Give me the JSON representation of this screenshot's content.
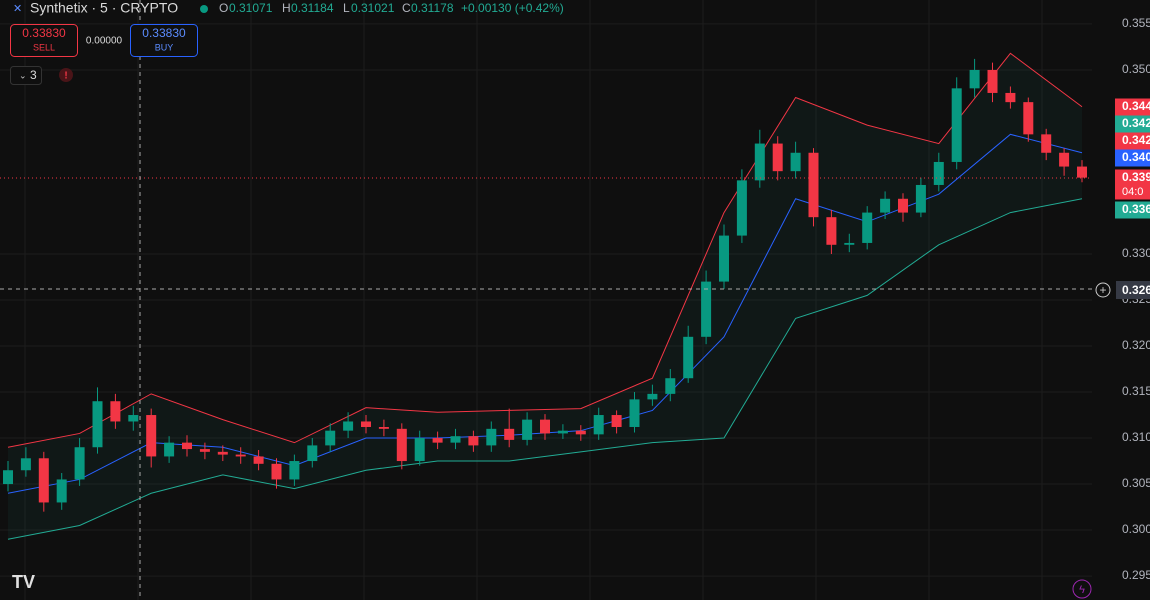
{
  "header": {
    "symbol": "Synthetix · 5 · CRYPTO",
    "o_label": "O",
    "o": "0.31071",
    "h_label": "H",
    "h": "0.31184",
    "l_label": "L",
    "l": "0.31021",
    "c_label": "C",
    "c": "0.31178",
    "change": "+0.00130 (+0.42%)"
  },
  "trade": {
    "sell_price": "0.33830",
    "sell": "SELL",
    "spread": "0.00000",
    "buy_price": "0.33830",
    "buy": "BUY",
    "indicators": "3"
  },
  "price_tags": [
    {
      "label": "0.344",
      "color": "#f23645"
    },
    {
      "label": "0.342",
      "color": "#22ab94"
    },
    {
      "label": "0.342",
      "color": "#f23645"
    },
    {
      "label": "0.340",
      "color": "#2962ff"
    },
    {
      "label": "0.339",
      "color": "#f23645",
      "sub": "04:0"
    },
    {
      "label": "0.336",
      "color": "#22ab94"
    }
  ],
  "crosshair_label": "0.326",
  "chart_data": {
    "type": "candlestick",
    "ylim": [
      0.2924,
      0.3576
    ],
    "yticks": [
      {
        "value": 0.295,
        "label": "0.295"
      },
      {
        "value": 0.3,
        "label": "0.300"
      },
      {
        "value": 0.305,
        "label": "0.305"
      },
      {
        "value": 0.31,
        "label": "0.310"
      },
      {
        "value": 0.315,
        "label": "0.315"
      },
      {
        "value": 0.32,
        "label": "0.320"
      },
      {
        "value": 0.325,
        "label": "0.325"
      },
      {
        "value": 0.33,
        "label": "0.330"
      },
      {
        "value": 0.35,
        "label": "0.350"
      },
      {
        "value": 0.355,
        "label": "0.355"
      }
    ],
    "up_color": "#089981",
    "down_color": "#f23645",
    "open": [
      0.305,
      0.3065,
      0.3078,
      0.303,
      0.3055,
      0.309,
      0.314,
      0.3118,
      0.3125,
      0.308,
      0.3095,
      0.3088,
      0.3085,
      0.3082,
      0.308,
      0.3072,
      0.3055,
      0.3075,
      0.3092,
      0.3108,
      0.3118,
      0.3112,
      0.311,
      0.3075,
      0.31,
      0.3095,
      0.3102,
      0.3092,
      0.311,
      0.3098,
      0.312,
      0.3105,
      0.3108,
      0.3104,
      0.3125,
      0.3112,
      0.3142,
      0.3148,
      0.3165,
      0.321,
      0.327,
      0.332,
      0.338,
      0.342,
      0.339,
      0.341,
      0.334,
      0.331,
      0.3312,
      0.3345,
      0.336,
      0.3345,
      0.3375,
      0.34,
      0.348,
      0.35,
      0.3475,
      0.3465,
      0.343,
      0.341,
      0.3395
    ],
    "high": [
      0.3075,
      0.309,
      0.3085,
      0.3062,
      0.31,
      0.3155,
      0.3148,
      0.3135,
      0.3132,
      0.3102,
      0.3103,
      0.3095,
      0.3092,
      0.309,
      0.3087,
      0.3078,
      0.3082,
      0.31,
      0.3116,
      0.3128,
      0.3125,
      0.312,
      0.3116,
      0.3108,
      0.3107,
      0.311,
      0.3108,
      0.3118,
      0.3132,
      0.3128,
      0.3126,
      0.3115,
      0.3114,
      0.3133,
      0.313,
      0.315,
      0.3158,
      0.3175,
      0.3222,
      0.3282,
      0.3332,
      0.3392,
      0.3435,
      0.3428,
      0.3422,
      0.3415,
      0.3348,
      0.3322,
      0.3352,
      0.3368,
      0.3366,
      0.3383,
      0.341,
      0.3492,
      0.3512,
      0.3508,
      0.3482,
      0.347,
      0.3436,
      0.3415,
      0.3402
    ],
    "low": [
      0.3042,
      0.3058,
      0.302,
      0.3022,
      0.3048,
      0.3083,
      0.311,
      0.3108,
      0.3068,
      0.3073,
      0.308,
      0.3077,
      0.3075,
      0.3072,
      0.3065,
      0.3045,
      0.3048,
      0.3068,
      0.3085,
      0.31,
      0.3105,
      0.3102,
      0.3066,
      0.307,
      0.3088,
      0.3088,
      0.3085,
      0.3085,
      0.309,
      0.3092,
      0.3098,
      0.3099,
      0.3097,
      0.3098,
      0.3105,
      0.3106,
      0.3135,
      0.314,
      0.316,
      0.3202,
      0.3262,
      0.3312,
      0.3372,
      0.338,
      0.3382,
      0.333,
      0.33,
      0.3302,
      0.3305,
      0.3338,
      0.3335,
      0.334,
      0.3368,
      0.3392,
      0.347,
      0.3465,
      0.3458,
      0.3422,
      0.3402,
      0.3385,
      0.3378
    ],
    "close": [
      0.3065,
      0.3078,
      0.303,
      0.3055,
      0.309,
      0.314,
      0.3118,
      0.3125,
      0.308,
      0.3095,
      0.3088,
      0.3085,
      0.3082,
      0.308,
      0.3072,
      0.3055,
      0.3075,
      0.3092,
      0.3108,
      0.3118,
      0.3112,
      0.311,
      0.3075,
      0.31,
      0.3095,
      0.3102,
      0.3092,
      0.311,
      0.3098,
      0.312,
      0.3105,
      0.3108,
      0.3104,
      0.3125,
      0.3112,
      0.3142,
      0.3148,
      0.3165,
      0.321,
      0.327,
      0.332,
      0.338,
      0.342,
      0.339,
      0.341,
      0.334,
      0.331,
      0.3312,
      0.3345,
      0.336,
      0.3345,
      0.3375,
      0.34,
      0.348,
      0.35,
      0.3475,
      0.3465,
      0.343,
      0.341,
      0.3395,
      0.3383
    ],
    "bands": {
      "x": [
        0,
        4,
        8,
        12,
        16,
        20,
        24,
        28,
        32,
        36,
        40,
        44,
        48,
        52,
        56,
        60
      ],
      "upper": [
        0.309,
        0.3105,
        0.3148,
        0.312,
        0.3095,
        0.3133,
        0.3128,
        0.313,
        0.3132,
        0.3165,
        0.3345,
        0.347,
        0.344,
        0.342,
        0.3518,
        0.346
      ],
      "middle": [
        0.304,
        0.3055,
        0.3095,
        0.309,
        0.307,
        0.31,
        0.31,
        0.3103,
        0.3108,
        0.313,
        0.321,
        0.336,
        0.3335,
        0.3365,
        0.343,
        0.341
      ],
      "lower": [
        0.299,
        0.3005,
        0.304,
        0.306,
        0.3045,
        0.3065,
        0.3075,
        0.3075,
        0.3085,
        0.3095,
        0.31,
        0.323,
        0.3255,
        0.331,
        0.3345,
        0.336
      ],
      "upper_color": "#f23645",
      "middle_color": "#2962ff",
      "lower_color": "#22ab94"
    }
  }
}
